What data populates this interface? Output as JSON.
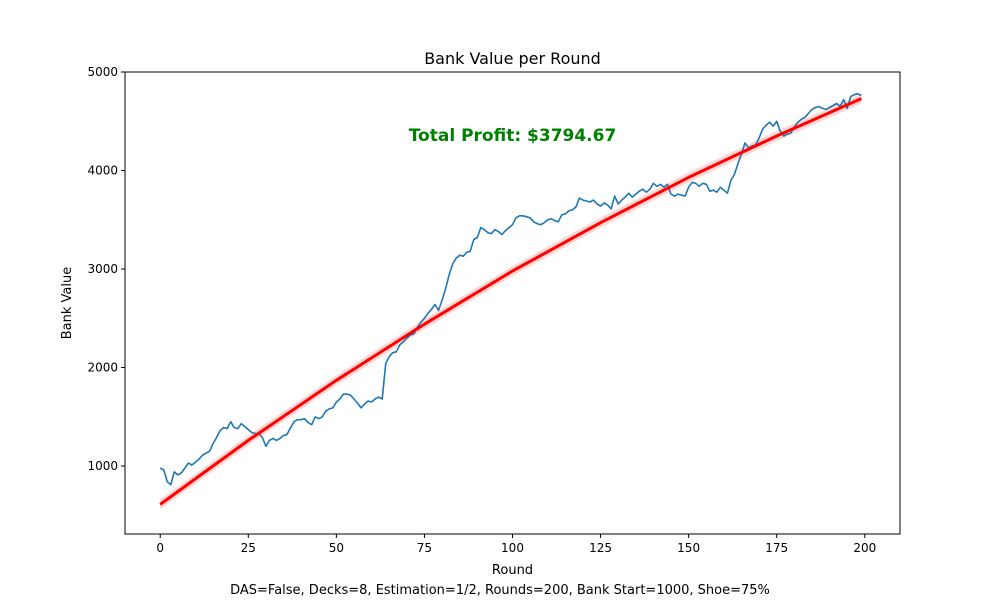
{
  "chart_data": {
    "type": "line",
    "title": "Bank Value per Round",
    "xlabel": "Round",
    "ylabel": "Bank Value",
    "caption": "DAS=False, Decks=8, Estimation=1/2, Rounds=200, Bank Start=1000, Shoe=75%",
    "annotation": "Total Profit: $3794.67",
    "xlim": [
      -10,
      210
    ],
    "ylim": [
      310,
      5000
    ],
    "x_ticks": [
      0,
      25,
      50,
      75,
      100,
      125,
      150,
      175,
      200
    ],
    "y_ticks": [
      1000,
      2000,
      3000,
      4000,
      5000
    ],
    "grid": false,
    "colors": {
      "series": "#1f77b4",
      "trend": "#ff0000",
      "band": "#ffb3b3",
      "annotation": "#008000"
    },
    "series": [
      {
        "x_start": 0,
        "values": [
          980,
          960,
          840,
          810,
          940,
          910,
          930,
          980,
          1030,
          1010,
          1040,
          1070,
          1110,
          1130,
          1150,
          1230,
          1290,
          1360,
          1390,
          1380,
          1450,
          1390,
          1380,
          1430,
          1400,
          1370,
          1340,
          1330,
          1330,
          1290,
          1200,
          1260,
          1280,
          1260,
          1280,
          1310,
          1320,
          1390,
          1450,
          1470,
          1470,
          1480,
          1440,
          1420,
          1500,
          1480,
          1500,
          1560,
          1580,
          1590,
          1650,
          1680,
          1730,
          1730,
          1720,
          1680,
          1640,
          1590,
          1630,
          1660,
          1650,
          1680,
          1700,
          1680,
          2040,
          2110,
          2150,
          2160,
          2230,
          2260,
          2300,
          2330,
          2340,
          2410,
          2460,
          2500,
          2550,
          2590,
          2640,
          2580,
          2680,
          2800,
          2940,
          3050,
          3110,
          3140,
          3130,
          3170,
          3180,
          3300,
          3320,
          3420,
          3400,
          3370,
          3360,
          3400,
          3380,
          3350,
          3390,
          3420,
          3450,
          3520,
          3540,
          3540,
          3530,
          3520,
          3480,
          3460,
          3450,
          3470,
          3500,
          3510,
          3490,
          3480,
          3550,
          3560,
          3590,
          3600,
          3630,
          3720,
          3700,
          3690,
          3680,
          3700,
          3660,
          3640,
          3670,
          3650,
          3610,
          3740,
          3660,
          3700,
          3730,
          3770,
          3730,
          3760,
          3790,
          3810,
          3780,
          3810,
          3870,
          3840,
          3860,
          3830,
          3860,
          3760,
          3740,
          3760,
          3750,
          3740,
          3830,
          3880,
          3870,
          3840,
          3870,
          3860,
          3790,
          3800,
          3780,
          3830,
          3800,
          3770,
          3900,
          3960,
          4070,
          4170,
          4280,
          4230,
          4250,
          4260,
          4330,
          4420,
          4460,
          4490,
          4450,
          4500,
          4400,
          4350,
          4370,
          4380,
          4440,
          4490,
          4520,
          4540,
          4580,
          4620,
          4640,
          4650,
          4630,
          4620,
          4640,
          4660,
          4680,
          4650,
          4720,
          4630,
          4750,
          4770,
          4780,
          4760
        ]
      },
      {
        "kind": "trend",
        "x": [
          0,
          25,
          50,
          75,
          100,
          125,
          150,
          175,
          199
        ],
        "values": [
          610,
          1260,
          1870,
          2440,
          2980,
          3470,
          3930,
          4350,
          4730
        ],
        "band": 50
      }
    ]
  }
}
